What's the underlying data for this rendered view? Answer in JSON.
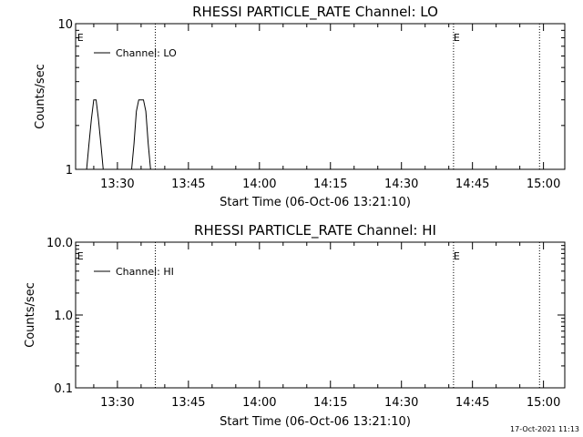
{
  "footer": {
    "timestamp": "17-Oct-2021 11:13"
  },
  "chart_data": [
    {
      "type": "line",
      "title": "RHESSI PARTICLE_RATE Channel: LO",
      "xlabel": "Start Time (06-Oct-06 13:21:10)",
      "ylabel": "Counts/sec",
      "x_unit": "minutes",
      "xlim": [
        "13:21:10",
        "15:04:30"
      ],
      "x_ticks": [
        "13:30",
        "13:45",
        "14:00",
        "14:15",
        "14:30",
        "14:45",
        "15:00"
      ],
      "y_scale": "log",
      "ylim": [
        1,
        10
      ],
      "y_ticks": [
        "1",
        "10"
      ],
      "legend_position": "top-left",
      "series": [
        {
          "name": "Channel: LO",
          "x": [
            "13:23:00",
            "13:23:30",
            "13:24:00",
            "13:24:30",
            "13:25:00",
            "13:25:30",
            "13:26:00",
            "13:26:30",
            "13:27:00",
            "13:33:00",
            "13:33:30",
            "13:34:00",
            "13:34:30",
            "13:35:00",
            "13:35:30",
            "13:36:00",
            "13:36:30",
            "13:37:00",
            "13:37:30",
            "13:38:00"
          ],
          "values": [
            1,
            1,
            1.5,
            2.2,
            3,
            3,
            2.2,
            1.5,
            1,
            1,
            1.5,
            2.5,
            3,
            3,
            3,
            2.5,
            1.5,
            1,
            1,
            1
          ]
        }
      ],
      "markers": [
        {
          "label": "E",
          "time": "13:21:30"
        },
        {
          "label": "E",
          "time": "14:41:00"
        }
      ],
      "dotted_lines": [
        "13:38:00",
        "14:41:00",
        "14:59:10"
      ]
    },
    {
      "type": "line",
      "title": "RHESSI PARTICLE_RATE Channel: HI",
      "xlabel": "Start Time (06-Oct-06 13:21:10)",
      "ylabel": "Counts/sec",
      "x_unit": "minutes",
      "xlim": [
        "13:21:10",
        "15:04:30"
      ],
      "x_ticks": [
        "13:30",
        "13:45",
        "14:00",
        "14:15",
        "14:30",
        "14:45",
        "15:00"
      ],
      "y_scale": "log",
      "ylim": [
        0.1,
        10
      ],
      "y_ticks": [
        "0.1",
        "1.0",
        "10.0"
      ],
      "legend_position": "top-left",
      "series": [
        {
          "name": "Channel: HI",
          "x": [],
          "values": []
        }
      ],
      "markers": [
        {
          "label": "E",
          "time": "13:21:30"
        },
        {
          "label": "E",
          "time": "14:41:00"
        }
      ],
      "dotted_lines": [
        "13:38:00",
        "14:41:00",
        "14:59:10"
      ]
    }
  ]
}
